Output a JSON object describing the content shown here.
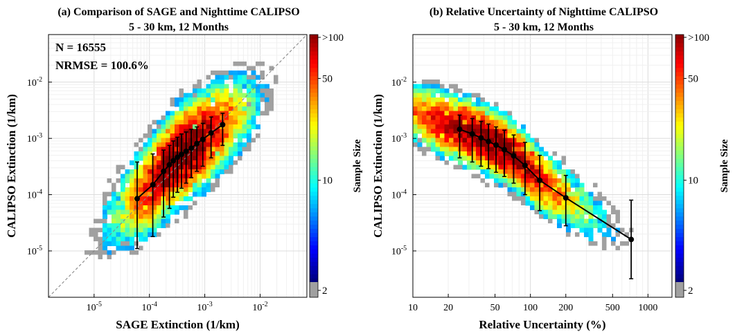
{
  "chart_data": [
    {
      "type": "heatmap",
      "title": "(a) Comparison of SAGE and Nighttime CALIPSO",
      "subtitle": "5 - 30 km, 12 Months",
      "xlabel": "SAGE Extinction (1/km)",
      "ylabel": "CALIPSO Extinction (1/km)",
      "xscale": "log",
      "yscale": "log",
      "xlim": [
        1.5e-06,
        0.07
      ],
      "ylim": [
        1.5e-06,
        0.07
      ],
      "x_ticks": [
        {
          "base": "10",
          "exp": "-5",
          "value": 1e-05
        },
        {
          "base": "10",
          "exp": "-4",
          "value": 0.0001
        },
        {
          "base": "10",
          "exp": "-3",
          "value": 0.001
        },
        {
          "base": "10",
          "exp": "-2",
          "value": 0.01
        }
      ],
      "y_ticks": [
        {
          "base": "10",
          "exp": "-5",
          "value": 1e-05
        },
        {
          "base": "10",
          "exp": "-4",
          "value": 0.0001
        },
        {
          "base": "10",
          "exp": "-3",
          "value": 0.001
        },
        {
          "base": "10",
          "exp": "-2",
          "value": 0.01
        }
      ],
      "one_to_one_line": true,
      "annotations": [
        "N = 16555",
        "NRMSE = 100.6%"
      ],
      "colorbar": {
        "title": "Sample Size",
        "ticks": [
          "2",
          "10",
          "50",
          ">100"
        ],
        "min": 2,
        "max": 100,
        "scale": "log",
        "below_min_color": "#a0a0a0"
      },
      "density_center": {
        "x": 0.0004,
        "y": 0.0005
      },
      "binned_means": {
        "x": [
          6e-05,
          0.000115,
          0.00018,
          0.00023,
          0.00027,
          0.00032,
          0.00038,
          0.00046,
          0.00057,
          0.00072,
          0.00092,
          0.0013,
          0.0021
        ],
        "y": [
          8.5e-05,
          0.00015,
          0.00026,
          0.00034,
          0.0004,
          0.00046,
          0.00052,
          0.00059,
          0.00067,
          0.00081,
          0.00096,
          0.00125,
          0.00175
        ],
        "y_low": [
          1.1e-05,
          1.8e-05,
          4e-05,
          5.7e-05,
          9e-05,
          0.00011,
          0.00013,
          0.00016,
          0.0002,
          0.00026,
          0.00032,
          0.00045,
          0.00075
        ],
        "y_high": [
          0.00038,
          0.00053,
          0.00062,
          0.00075,
          0.0009,
          0.00105,
          0.0012,
          0.0013,
          0.00145,
          0.0016,
          0.00185,
          0.0024,
          0.0028
        ]
      }
    },
    {
      "type": "heatmap",
      "title": "(b) Relative Uncertainty of Nighttime CALIPSO",
      "subtitle": "5 - 30 km, 12 Months",
      "xlabel": "Relative Uncertainty (%)",
      "ylabel": "CALIPSO Extinction (1/km)",
      "xscale": "log",
      "yscale": "log",
      "xlim": [
        10,
        1600
      ],
      "ylim": [
        1.5e-06,
        0.07
      ],
      "x_ticks": [
        {
          "label": "10",
          "value": 10
        },
        {
          "label": "20",
          "value": 20
        },
        {
          "label": "50",
          "value": 50
        },
        {
          "label": "100",
          "value": 100
        },
        {
          "label": "200",
          "value": 200
        },
        {
          "label": "500",
          "value": 500
        },
        {
          "label": "1000",
          "value": 1000
        }
      ],
      "y_ticks": [
        {
          "base": "10",
          "exp": "-5",
          "value": 1e-05
        },
        {
          "base": "10",
          "exp": "-4",
          "value": 0.0001
        },
        {
          "base": "10",
          "exp": "-3",
          "value": 0.001
        },
        {
          "base": "10",
          "exp": "-2",
          "value": 0.01
        }
      ],
      "colorbar": {
        "title": "Sample Size",
        "ticks": [
          "2",
          "10",
          "50",
          ">100"
        ],
        "min": 2,
        "max": 100,
        "scale": "log",
        "below_min_color": "#a0a0a0"
      },
      "density_center": {
        "x": 45,
        "y": 0.0009
      },
      "binned_means": {
        "x": [
          25,
          32,
          38,
          44,
          51,
          60,
          72,
          90,
          120,
          200,
          720
        ],
        "y": [
          0.00145,
          0.0012,
          0.00102,
          0.00088,
          0.00076,
          0.00063,
          0.00049,
          0.00033,
          0.00018,
          8.8e-05,
          1.6e-05
        ],
        "y_low": [
          0.00045,
          0.00038,
          0.00032,
          0.00029,
          0.00025,
          0.00021,
          0.00016,
          0.0001,
          5.2e-05,
          2.8e-05,
          3.2e-06
        ],
        "y_high": [
          0.0026,
          0.00225,
          0.002,
          0.0018,
          0.0016,
          0.0014,
          0.00115,
          0.00085,
          0.0005,
          0.00022,
          8e-05
        ]
      }
    }
  ]
}
